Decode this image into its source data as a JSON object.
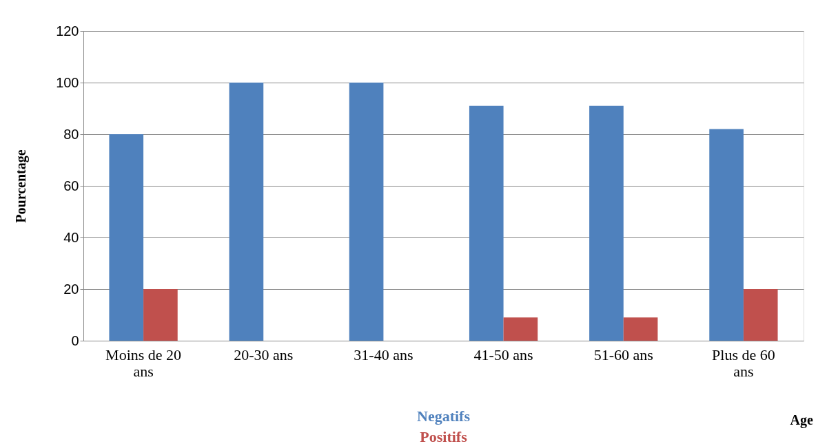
{
  "chart_data": {
    "type": "bar",
    "ylabel": "Pourcentage",
    "xlabel": "Age",
    "categories": [
      "Moins de 20 ans",
      "20-30 ans",
      "31-40 ans",
      "41-50 ans",
      "51-60 ans",
      "Plus de 60 ans"
    ],
    "series": [
      {
        "name": "Negatifs",
        "color": "#4f81bd",
        "values": [
          80,
          100,
          100,
          91,
          91,
          82
        ]
      },
      {
        "name": "Positifs",
        "color": "#c0504d",
        "values": [
          20,
          0,
          0,
          9,
          9,
          20
        ]
      }
    ],
    "ylim": [
      0,
      120
    ],
    "yticks": [
      0,
      20,
      40,
      60,
      80,
      100,
      120
    ],
    "grid": "y",
    "legend": "bottom"
  }
}
